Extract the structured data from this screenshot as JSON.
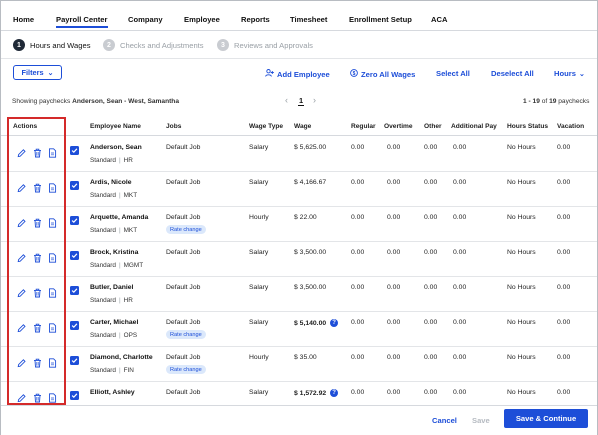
{
  "nav": {
    "items": [
      "Home",
      "Payroll Center",
      "Company",
      "Employee",
      "Reports",
      "Timesheet",
      "Enrollment Setup",
      "ACA"
    ],
    "active": "Payroll Center"
  },
  "steps": [
    {
      "num": "1",
      "label": "Hours and Wages",
      "active": true
    },
    {
      "num": "2",
      "label": "Checks and Adjustments",
      "active": false
    },
    {
      "num": "3",
      "label": "Reviews and Approvals",
      "active": false
    }
  ],
  "toolbar": {
    "filters_label": "Filters",
    "add_employee_label": "Add Employee",
    "zero_all_wages_label": "Zero All Wages",
    "select_all_label": "Select All",
    "deselect_all_label": "Deselect All",
    "hours_label": "Hours"
  },
  "summary": {
    "showing_prefix": "Showing paychecks",
    "showing_range": "Anderson, Sean - West, Samantha",
    "page": "1",
    "range_text": "1 - 19",
    "range_of": "of",
    "range_total": "19",
    "range_suffix": "paychecks"
  },
  "table": {
    "headers": [
      "Actions",
      "Employee Name",
      "Jobs",
      "Wage Type",
      "Wage",
      "Regular",
      "Overtime",
      "Other",
      "Additional Pay",
      "Hours Status",
      "Vacation"
    ],
    "rows": [
      {
        "name": "Anderson, Sean",
        "type": "Standard",
        "dept": "HR",
        "job": "Default Job",
        "chip": "",
        "wage_type": "Salary",
        "wage": "$ 5,625.00",
        "wage_bold": false,
        "info": false,
        "regular": "0.00",
        "overtime": "0.00",
        "other": "0.00",
        "additional": "0.00",
        "status": "No Hours",
        "vacation": "0.00"
      },
      {
        "name": "Ardis, Nicole",
        "type": "Standard",
        "dept": "MKT",
        "job": "Default Job",
        "chip": "",
        "wage_type": "Salary",
        "wage": "$ 4,166.67",
        "wage_bold": false,
        "info": false,
        "regular": "0.00",
        "overtime": "0.00",
        "other": "0.00",
        "additional": "0.00",
        "status": "No Hours",
        "vacation": "0.00"
      },
      {
        "name": "Arquette, Amanda",
        "type": "Standard",
        "dept": "MKT",
        "job": "Default Job",
        "chip": "Rate change",
        "wage_type": "Hourly",
        "wage": "$ 22.00",
        "wage_bold": false,
        "info": false,
        "regular": "0.00",
        "overtime": "0.00",
        "other": "0.00",
        "additional": "0.00",
        "status": "No Hours",
        "vacation": "0.00"
      },
      {
        "name": "Brock, Kristina",
        "type": "Standard",
        "dept": "MGMT",
        "job": "Default Job",
        "chip": "",
        "wage_type": "Salary",
        "wage": "$ 3,500.00",
        "wage_bold": false,
        "info": false,
        "regular": "0.00",
        "overtime": "0.00",
        "other": "0.00",
        "additional": "0.00",
        "status": "No Hours",
        "vacation": "0.00"
      },
      {
        "name": "Butler, Daniel",
        "type": "Standard",
        "dept": "HR",
        "job": "Default Job",
        "chip": "",
        "wage_type": "Salary",
        "wage": "$ 3,500.00",
        "wage_bold": false,
        "info": false,
        "regular": "0.00",
        "overtime": "0.00",
        "other": "0.00",
        "additional": "0.00",
        "status": "No Hours",
        "vacation": "0.00"
      },
      {
        "name": "Carter, Michael",
        "type": "Standard",
        "dept": "OPS",
        "job": "Default Job",
        "chip": "Rate change",
        "wage_type": "Salary",
        "wage": "$ 5,140.00",
        "wage_bold": true,
        "info": true,
        "regular": "0.00",
        "overtime": "0.00",
        "other": "0.00",
        "additional": "0.00",
        "status": "No Hours",
        "vacation": "0.00"
      },
      {
        "name": "Diamond, Charlotte",
        "type": "Standard",
        "dept": "FIN",
        "job": "Default Job",
        "chip": "Rate change",
        "wage_type": "Hourly",
        "wage": "$ 35.00",
        "wage_bold": false,
        "info": false,
        "regular": "0.00",
        "overtime": "0.00",
        "other": "0.00",
        "additional": "0.00",
        "status": "No Hours",
        "vacation": "0.00"
      },
      {
        "name": "Elliott, Ashley",
        "type": "",
        "dept": "",
        "job": "Default Job",
        "chip": "",
        "wage_type": "Salary",
        "wage": "$ 1,572.92",
        "wage_bold": true,
        "info": true,
        "regular": "0.00",
        "overtime": "0.00",
        "other": "0.00",
        "additional": "0.00",
        "status": "No Hours",
        "vacation": "0.00"
      }
    ]
  },
  "footer": {
    "cancel_label": "Cancel",
    "save_label": "Save",
    "save_continue_label": "Save & Continue"
  },
  "colors": {
    "accent": "#1d4ed8",
    "highlight": "#d42a2a",
    "chip_bg": "#dbe8fb"
  }
}
